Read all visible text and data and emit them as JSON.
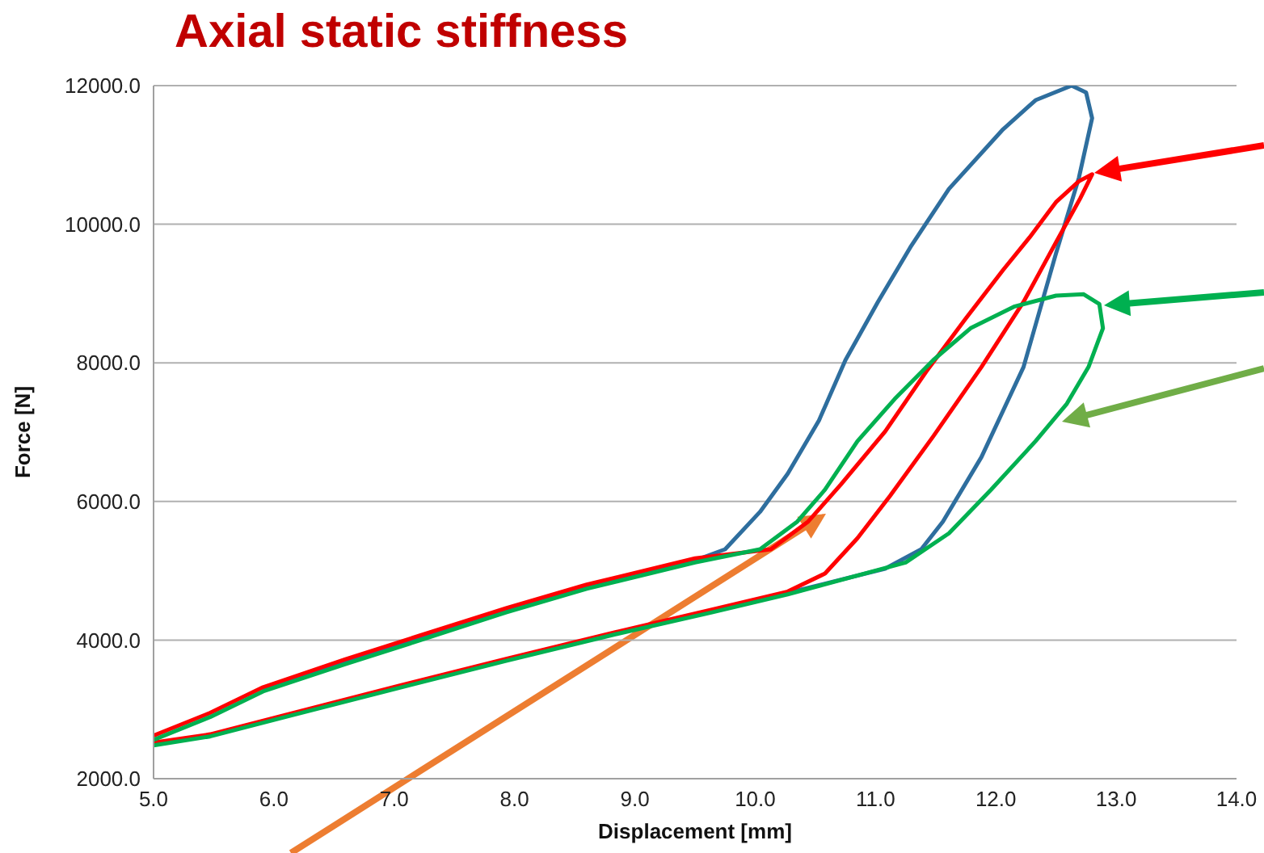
{
  "chart_data": {
    "type": "line",
    "title": "Axial static stiffness",
    "xlabel": "Displacement [mm]",
    "ylabel": "Force [N]",
    "xlim": [
      5,
      14
    ],
    "ylim": [
      2000,
      12000
    ],
    "xticks": [
      {
        "value": 5,
        "label": "5.0"
      },
      {
        "value": 6,
        "label": "6.0"
      },
      {
        "value": 7,
        "label": "7.0"
      },
      {
        "value": 8,
        "label": "8.0"
      },
      {
        "value": 9,
        "label": "9.0"
      },
      {
        "value": 10,
        "label": "10.0"
      },
      {
        "value": 11,
        "label": "11.0"
      },
      {
        "value": 12,
        "label": "12.0"
      },
      {
        "value": 13,
        "label": "13.0"
      },
      {
        "value": 14,
        "label": "14.0"
      }
    ],
    "yticks": [
      {
        "value": 2000,
        "label": "2000.0"
      },
      {
        "value": 4000,
        "label": "4000.0"
      },
      {
        "value": 6000,
        "label": "6000.0"
      },
      {
        "value": 8000,
        "label": "8000.0"
      },
      {
        "value": 10000,
        "label": "10000.0"
      },
      {
        "value": 12000,
        "label": "12000.0"
      }
    ],
    "grid": "y",
    "marker": "none",
    "line_style": "solid",
    "series": [
      {
        "color": "#2e6e9e",
        "x": [
          9.64,
          10.27,
          11.08,
          11.38,
          11.56,
          11.88,
          12.23,
          12.5,
          12.69,
          12.8,
          12.75,
          12.63,
          12.33,
          12.06,
          11.61,
          11.29,
          11.02,
          10.75,
          10.53,
          10.27,
          10.04,
          9.75,
          9.5,
          8.6,
          7.93,
          7.22,
          6.59,
          5.91
        ],
        "values": [
          4420,
          4680,
          5030,
          5310,
          5710,
          6640,
          7940,
          9580,
          10670,
          11530,
          11900,
          12000,
          11790,
          11370,
          10510,
          9670,
          8880,
          8040,
          7170,
          6400,
          5850,
          5310,
          5150,
          4770,
          4420,
          4030,
          3680,
          3280
        ]
      },
      {
        "color": "#ff0000",
        "x": [
          5.0,
          5.47,
          6.14,
          7.04,
          7.93,
          8.83,
          9.64,
          10.27,
          10.58,
          10.85,
          11.12,
          11.48,
          11.88,
          12.23,
          12.5,
          12.7,
          12.8,
          12.69,
          12.5,
          12.28,
          12.06,
          11.75,
          11.42,
          11.08,
          10.71,
          10.44,
          10.13,
          9.5,
          8.6,
          7.93,
          7.22,
          6.59,
          5.91,
          5.47,
          5.0
        ],
        "values": [
          2520,
          2640,
          2940,
          3340,
          3730,
          4110,
          4440,
          4700,
          4960,
          5470,
          6080,
          6940,
          7940,
          8880,
          9740,
          10370,
          10720,
          10620,
          10320,
          9810,
          9340,
          8640,
          7870,
          7010,
          6240,
          5710,
          5310,
          5180,
          4800,
          4460,
          4070,
          3720,
          3320,
          2950,
          2620
        ]
      },
      {
        "color": "#00b050",
        "x": [
          5.0,
          5.47,
          6.14,
          7.04,
          7.93,
          8.83,
          9.64,
          10.27,
          11.25,
          11.61,
          11.96,
          12.33,
          12.59,
          12.77,
          12.89,
          12.86,
          12.73,
          12.5,
          12.15,
          11.79,
          11.48,
          11.16,
          10.85,
          10.58,
          10.35,
          10.04,
          9.5,
          8.6,
          7.93,
          7.22,
          6.59,
          5.91,
          5.47,
          5.0
        ],
        "values": [
          2480,
          2610,
          2910,
          3310,
          3700,
          4080,
          4400,
          4660,
          5120,
          5540,
          6170,
          6870,
          7410,
          7940,
          8500,
          8850,
          8990,
          8970,
          8810,
          8500,
          8040,
          7480,
          6870,
          6170,
          5710,
          5310,
          5120,
          4740,
          4400,
          4000,
          3650,
          3260,
          2890,
          2560
        ]
      }
    ]
  }
}
